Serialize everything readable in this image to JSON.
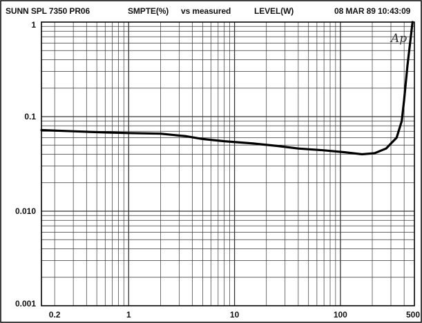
{
  "header": {
    "device": "SUNN SPL 7350 PR06",
    "measurement": "SMPTE(%)",
    "versus": "vs measured",
    "level": "LEVEL(W)",
    "timestamp": "08 MAR 89 10:43:09"
  },
  "logo_text": "Ap",
  "colors": {
    "grid": "#333333",
    "curve": "#000000",
    "frame": "#000000",
    "background": "#ffffff"
  },
  "chart_data": {
    "type": "line",
    "title": "SMPTE(%) vs measured LEVEL(W)",
    "xlabel": "LEVEL(W)",
    "ylabel": "SMPTE(%)",
    "x_scale": "log",
    "y_scale": "log",
    "xlim": [
      0.15,
      500
    ],
    "ylim": [
      0.001,
      1
    ],
    "grid": true,
    "x_tick_labels": [
      {
        "value": 0.2,
        "label": "0.2"
      },
      {
        "value": 1,
        "label": "1"
      },
      {
        "value": 10,
        "label": "10"
      },
      {
        "value": 100,
        "label": "100"
      },
      {
        "value": 500,
        "label": "500"
      }
    ],
    "y_tick_labels": [
      {
        "value": 1,
        "label": "1"
      },
      {
        "value": 0.1,
        "label": "0.1"
      },
      {
        "value": 0.01,
        "label": "0.010"
      },
      {
        "value": 0.001,
        "label": "0.001"
      }
    ],
    "series": [
      {
        "x": [
          0.15,
          0.3,
          0.6,
          1.0,
          2.0,
          3.5,
          5,
          8,
          15,
          25,
          40,
          70,
          110,
          160,
          210,
          270,
          340,
          380,
          400,
          430,
          480
        ],
        "y": [
          0.072,
          0.07,
          0.068,
          0.067,
          0.066,
          0.062,
          0.058,
          0.055,
          0.052,
          0.049,
          0.046,
          0.044,
          0.042,
          0.04,
          0.041,
          0.046,
          0.06,
          0.09,
          0.15,
          0.35,
          1.0
        ]
      }
    ]
  }
}
